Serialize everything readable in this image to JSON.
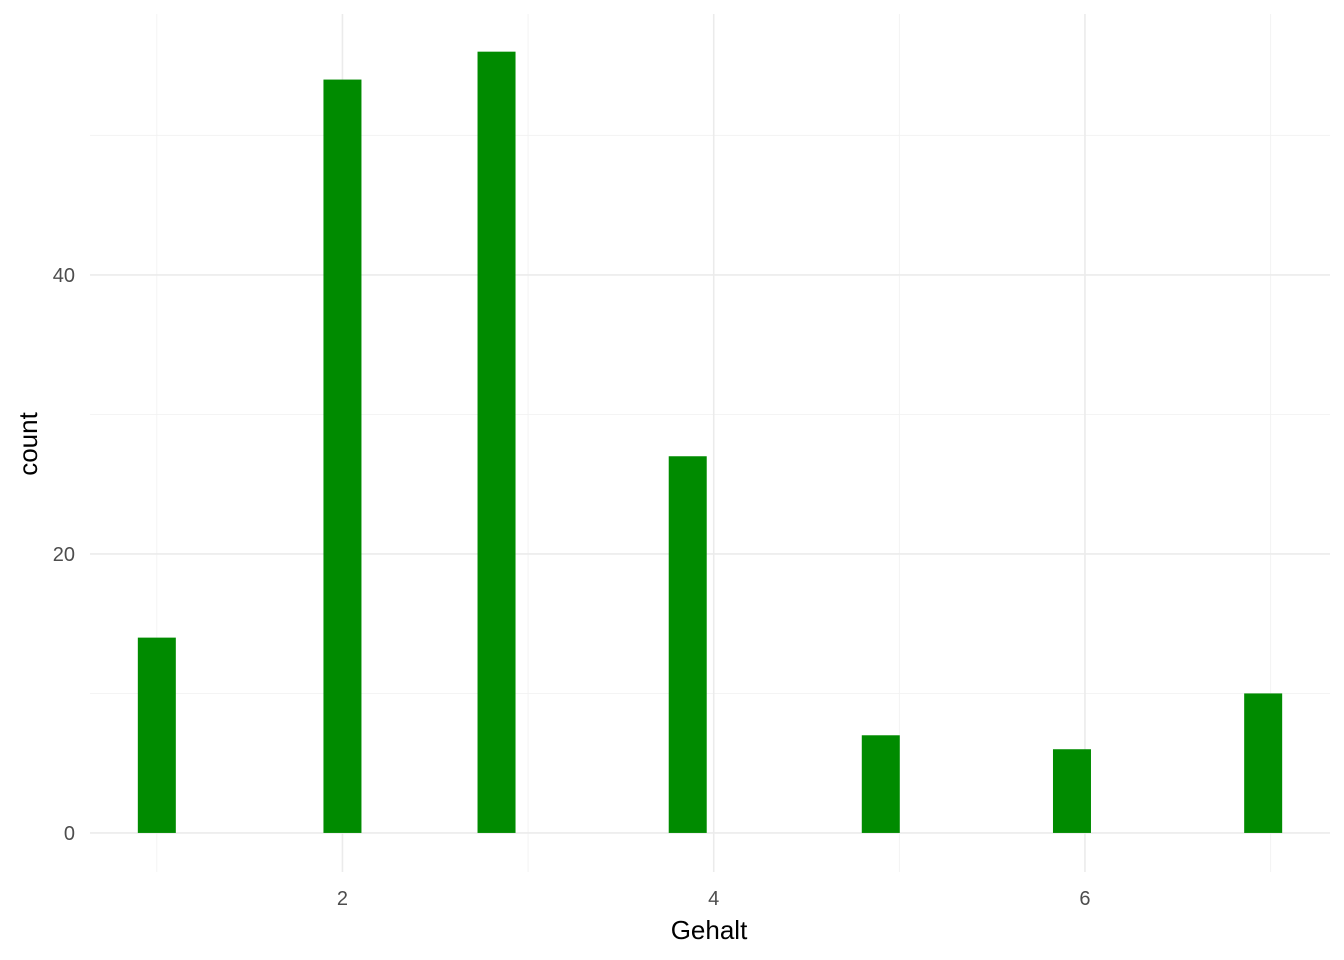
{
  "chart_data": {
    "type": "bar",
    "title": "",
    "xlabel": "Gehalt",
    "ylabel": "count",
    "bar_color": "#008B00",
    "x": [
      1,
      2,
      2.83,
      3.86,
      4.9,
      5.93,
      6.96
    ],
    "values": [
      14,
      54,
      56,
      27,
      7,
      6,
      10
    ],
    "xlim": [
      0.64,
      7.32
    ],
    "ylim": [
      -2.8,
      58.7
    ],
    "x_ticks": [
      2,
      4,
      6
    ],
    "x_tick_labels": [
      "2",
      "4",
      "6"
    ],
    "y_ticks": [
      0,
      20,
      40
    ],
    "y_tick_labels": [
      "0",
      "20",
      "40"
    ],
    "grid": true,
    "legend": "none"
  }
}
